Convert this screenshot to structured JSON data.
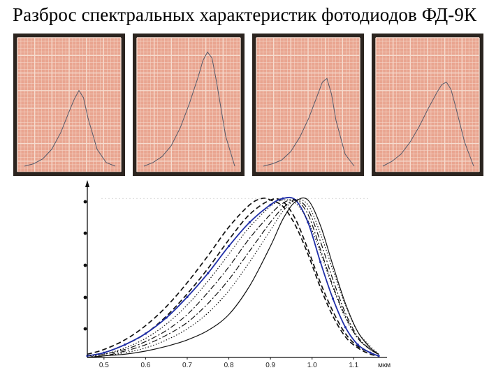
{
  "title": "Разброс спектральных характеристик фотодиодов ФД-9К",
  "colors": {
    "paper": "#e9a590",
    "grid": "#f6dccf",
    "frame": "#2b241f",
    "highlight": "#1f2ea8",
    "ink": "#111111"
  },
  "chart_data": [
    {
      "type": "line",
      "panel": "photo-1",
      "x": [
        0,
        0.1,
        0.2,
        0.3,
        0.4,
        0.5,
        0.55,
        0.6,
        0.65,
        0.7,
        0.8,
        0.9,
        1.0
      ],
      "values": [
        0,
        0.02,
        0.06,
        0.14,
        0.28,
        0.47,
        0.56,
        0.63,
        0.57,
        0.4,
        0.14,
        0.03,
        0
      ],
      "ylim": [
        0,
        1
      ]
    },
    {
      "type": "line",
      "panel": "photo-2",
      "x": [
        0,
        0.1,
        0.2,
        0.3,
        0.4,
        0.5,
        0.6,
        0.65,
        0.7,
        0.75,
        0.8,
        0.9,
        1.0
      ],
      "values": [
        0,
        0.03,
        0.08,
        0.17,
        0.32,
        0.52,
        0.75,
        0.88,
        0.95,
        0.9,
        0.7,
        0.25,
        0
      ],
      "ylim": [
        0,
        1
      ]
    },
    {
      "type": "line",
      "panel": "photo-3",
      "x": [
        0,
        0.1,
        0.2,
        0.3,
        0.4,
        0.5,
        0.6,
        0.65,
        0.7,
        0.75,
        0.8,
        0.9,
        1.0
      ],
      "values": [
        0,
        0.02,
        0.05,
        0.12,
        0.24,
        0.4,
        0.6,
        0.7,
        0.73,
        0.6,
        0.38,
        0.1,
        0
      ],
      "ylim": [
        0,
        1
      ]
    },
    {
      "type": "line",
      "panel": "photo-4",
      "x": [
        0,
        0.1,
        0.2,
        0.3,
        0.4,
        0.5,
        0.6,
        0.65,
        0.7,
        0.75,
        0.8,
        0.9,
        1.0
      ],
      "values": [
        0,
        0.04,
        0.1,
        0.2,
        0.33,
        0.48,
        0.62,
        0.68,
        0.7,
        0.64,
        0.5,
        0.2,
        0
      ],
      "ylim": [
        0,
        1
      ]
    },
    {
      "type": "line",
      "panel": "composite",
      "xlabel": "мкм",
      "xticks": [
        "0.5",
        "0.6",
        "0.7",
        "0.8",
        "0.9",
        "1.0",
        "1.1"
      ],
      "xlim": [
        0.46,
        1.17
      ],
      "ylim": [
        0,
        1.08
      ],
      "series": [
        {
          "style": "dash",
          "highlight": false,
          "x": [
            0.46,
            0.5,
            0.55,
            0.6,
            0.65,
            0.7,
            0.75,
            0.8,
            0.85,
            0.88,
            0.9,
            0.93,
            0.96,
            0.99,
            1.02,
            1.05,
            1.08,
            1.11,
            1.14,
            1.16
          ],
          "values": [
            0.02,
            0.05,
            0.11,
            0.2,
            0.32,
            0.47,
            0.64,
            0.82,
            0.96,
            1.0,
            0.99,
            0.95,
            0.83,
            0.65,
            0.44,
            0.26,
            0.13,
            0.06,
            0.02,
            0.01
          ]
        },
        {
          "style": "dash",
          "highlight": false,
          "x": [
            0.46,
            0.5,
            0.55,
            0.6,
            0.65,
            0.7,
            0.75,
            0.8,
            0.85,
            0.9,
            0.93,
            0.96,
            0.99,
            1.02,
            1.05,
            1.08,
            1.11,
            1.14,
            1.16
          ],
          "values": [
            0.01,
            0.03,
            0.08,
            0.15,
            0.26,
            0.4,
            0.56,
            0.74,
            0.9,
            0.99,
            0.98,
            0.87,
            0.68,
            0.47,
            0.29,
            0.15,
            0.07,
            0.03,
            0.01
          ]
        },
        {
          "style": "solid",
          "highlight": true,
          "x": [
            0.46,
            0.5,
            0.55,
            0.6,
            0.65,
            0.7,
            0.75,
            0.8,
            0.85,
            0.9,
            0.93,
            0.96,
            0.99,
            1.02,
            1.05,
            1.08,
            1.11,
            1.14,
            1.16
          ],
          "values": [
            0.01,
            0.03,
            0.08,
            0.15,
            0.25,
            0.38,
            0.53,
            0.7,
            0.85,
            0.96,
            1.0,
            0.99,
            0.85,
            0.6,
            0.37,
            0.19,
            0.08,
            0.03,
            0.01
          ]
        },
        {
          "style": "dot",
          "highlight": false,
          "x": [
            0.46,
            0.5,
            0.55,
            0.6,
            0.65,
            0.7,
            0.75,
            0.8,
            0.85,
            0.9,
            0.93,
            0.96,
            0.99,
            1.02,
            1.05,
            1.08,
            1.11,
            1.14,
            1.16
          ],
          "values": [
            0.01,
            0.02,
            0.06,
            0.12,
            0.21,
            0.33,
            0.48,
            0.65,
            0.82,
            0.95,
            0.99,
            0.97,
            0.86,
            0.66,
            0.44,
            0.25,
            0.12,
            0.05,
            0.02
          ]
        },
        {
          "style": "dashdot",
          "highlight": false,
          "x": [
            0.46,
            0.5,
            0.55,
            0.6,
            0.65,
            0.7,
            0.75,
            0.8,
            0.85,
            0.9,
            0.93,
            0.96,
            0.99,
            1.02,
            1.05,
            1.08,
            1.11,
            1.14,
            1.16
          ],
          "values": [
            0.0,
            0.02,
            0.05,
            0.1,
            0.17,
            0.27,
            0.41,
            0.57,
            0.75,
            0.9,
            0.97,
            0.99,
            0.9,
            0.68,
            0.45,
            0.26,
            0.12,
            0.05,
            0.02
          ]
        },
        {
          "style": "dashdot",
          "highlight": false,
          "x": [
            0.46,
            0.5,
            0.55,
            0.6,
            0.65,
            0.7,
            0.75,
            0.8,
            0.85,
            0.9,
            0.93,
            0.96,
            0.99,
            1.02,
            1.05,
            1.08,
            1.11,
            1.14,
            1.16
          ],
          "values": [
            0.0,
            0.01,
            0.04,
            0.08,
            0.14,
            0.22,
            0.34,
            0.49,
            0.67,
            0.85,
            0.94,
            0.99,
            0.93,
            0.73,
            0.49,
            0.28,
            0.13,
            0.05,
            0.02
          ]
        },
        {
          "style": "dot",
          "highlight": false,
          "x": [
            0.46,
            0.5,
            0.55,
            0.6,
            0.65,
            0.7,
            0.75,
            0.8,
            0.85,
            0.9,
            0.93,
            0.96,
            0.99,
            1.02,
            1.05,
            1.08,
            1.11,
            1.14,
            1.16
          ],
          "values": [
            0.0,
            0.01,
            0.03,
            0.06,
            0.11,
            0.18,
            0.28,
            0.42,
            0.6,
            0.8,
            0.92,
            0.99,
            0.96,
            0.78,
            0.55,
            0.33,
            0.16,
            0.07,
            0.02
          ]
        },
        {
          "style": "solid",
          "highlight": false,
          "x": [
            0.46,
            0.5,
            0.55,
            0.6,
            0.65,
            0.7,
            0.75,
            0.8,
            0.85,
            0.9,
            0.93,
            0.96,
            0.99,
            1.02,
            1.05,
            1.08,
            1.11,
            1.14,
            1.16
          ],
          "values": [
            0.0,
            0.01,
            0.02,
            0.04,
            0.07,
            0.11,
            0.17,
            0.27,
            0.45,
            0.7,
            0.87,
            0.98,
            0.99,
            0.83,
            0.58,
            0.34,
            0.16,
            0.06,
            0.02
          ]
        }
      ]
    }
  ]
}
